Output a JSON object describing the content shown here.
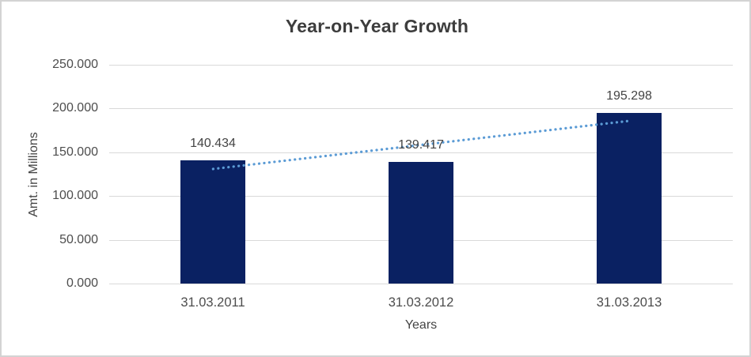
{
  "window": {
    "background_color": "#ffffff",
    "border_color": "#d3d3d3"
  },
  "chart_data": {
    "type": "bar",
    "title": "Year-on-Year Growth",
    "xlabel": "Years",
    "ylabel": "Amt. in Millions",
    "categories": [
      "31.03.2011",
      "31.03.2012",
      "31.03.2013"
    ],
    "series": [
      {
        "name": "Amt. in Millions",
        "values": [
          140.434,
          139.417,
          195.298
        ]
      }
    ],
    "data_labels": [
      "140.434",
      "139.417",
      "195.298"
    ],
    "ylim": [
      0,
      250
    ],
    "ytick_values": [
      0,
      50,
      100,
      150,
      200,
      250
    ],
    "ytick_labels": [
      "0.000",
      "50.000",
      "100.000",
      "150.000",
      "200.000",
      "250.000"
    ],
    "grid": true,
    "legend": "none",
    "trendline": {
      "type": "linear",
      "style": "dotted",
      "color": "#5b9bd5"
    },
    "colors": {
      "bar": "#0a2162",
      "gridline": "#d9d9d9",
      "axis_line": "#d9d9d9",
      "tick_text": "#4d4d4d",
      "title_text": "#3d3d3d"
    }
  }
}
